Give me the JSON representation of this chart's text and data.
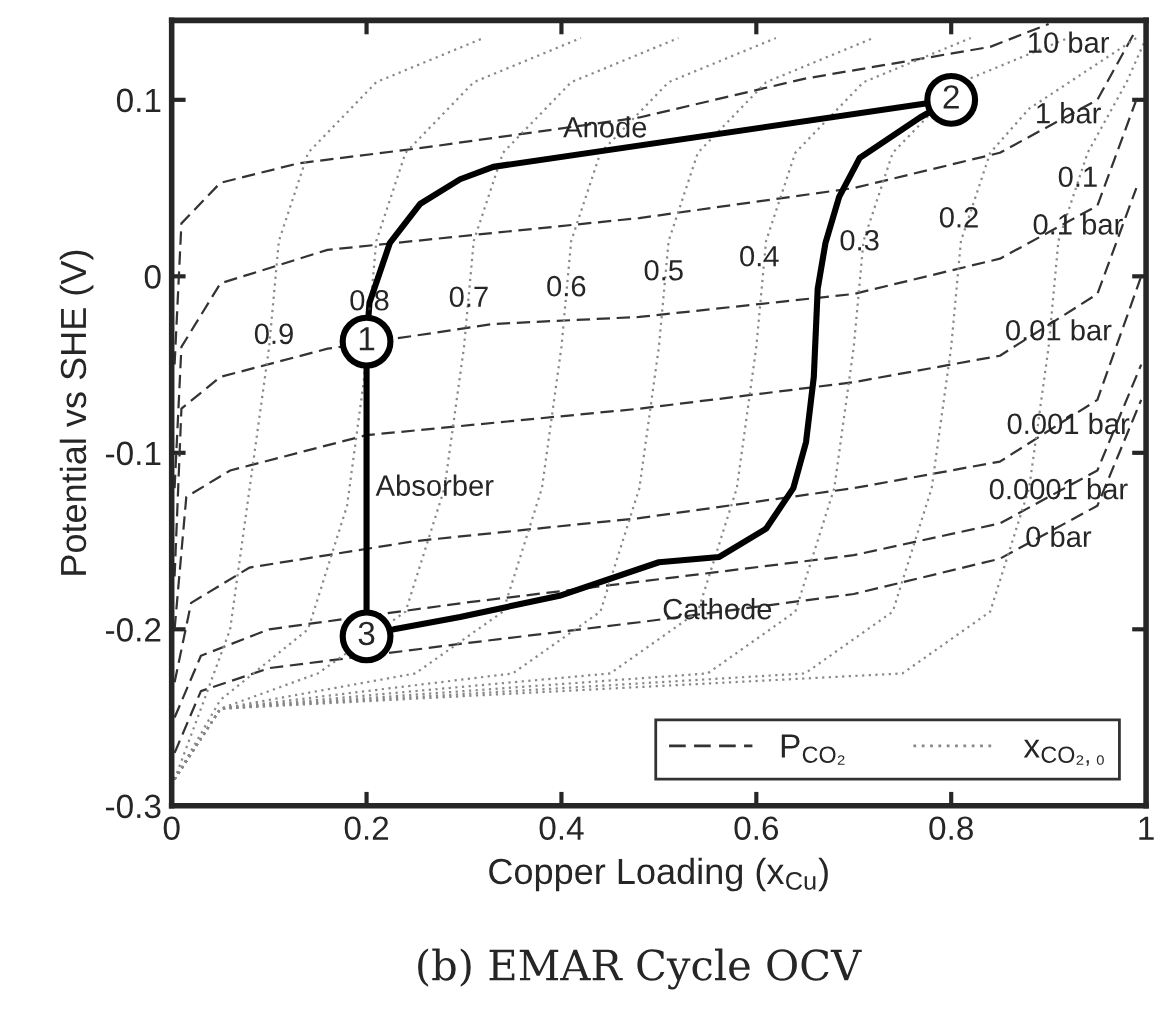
{
  "chart_data": {
    "type": "line",
    "xlabel": "Copper Loading (x$_{Cu}$)",
    "ylabel": "Potential vs SHE (V)",
    "xlim": [
      0,
      1
    ],
    "ylim": [
      -0.3,
      0.145
    ],
    "xticks": [
      0,
      0.2,
      0.4,
      0.6,
      0.8,
      1
    ],
    "yticks": [
      {
        "value": -0.3,
        "label": "-0.3"
      },
      {
        "value": -0.2,
        "label": "-0.2"
      },
      {
        "value": -0.1,
        "label": "-0.1"
      },
      0,
      0.1
    ],
    "grid": false,
    "legend": "bottom right",
    "series": [
      {
        "name": "P$_{CO₂}$",
        "color": "#333333",
        "line_style": "dashed",
        "x": [
          0.003,
          0.01,
          0.05,
          0.13,
          0.26,
          0.48,
          0.65,
          0.84,
          0.9
        ],
        "values": [
          -0.05,
          0.03,
          0.053,
          0.064,
          0.073,
          0.09,
          0.112,
          0.13,
          0.143
        ]
      },
      {
        "color": "#333333",
        "line_style": "dashed",
        "x": [
          0.003,
          0.01,
          0.05,
          0.16,
          0.48,
          0.7,
          0.85,
          0.95,
          0.99
        ],
        "values": [
          -0.12,
          -0.04,
          -0.004,
          0.015,
          0.033,
          0.05,
          0.07,
          0.1,
          0.14
        ]
      },
      {
        "color": "#333333",
        "line_style": "dashed",
        "x": [
          0.003,
          0.01,
          0.05,
          0.16,
          0.33,
          0.48,
          0.7,
          0.85,
          0.95,
          0.99
        ],
        "values": [
          -0.17,
          -0.075,
          -0.057,
          -0.041,
          -0.027,
          -0.023,
          -0.01,
          0.01,
          0.04,
          0.1
        ]
      },
      {
        "color": "#333333",
        "line_style": "dashed",
        "x": [
          0.003,
          0.015,
          0.06,
          0.2,
          0.48,
          0.7,
          0.85,
          0.95,
          0.99
        ],
        "values": [
          -0.2,
          -0.125,
          -0.11,
          -0.09,
          -0.075,
          -0.06,
          -0.045,
          -0.01,
          0.05
        ]
      },
      {
        "color": "#333333",
        "line_style": "dashed",
        "x": [
          0.003,
          0.02,
          0.08,
          0.25,
          0.48,
          0.7,
          0.85,
          0.95,
          0.995
        ],
        "values": [
          -0.23,
          -0.185,
          -0.165,
          -0.15,
          -0.137,
          -0.12,
          -0.105,
          -0.07,
          0.0
        ]
      },
      {
        "color": "#333333",
        "line_style": "dashed",
        "x": [
          0.003,
          0.03,
          0.1,
          0.3,
          0.48,
          0.7,
          0.85,
          0.95,
          0.995
        ],
        "values": [
          -0.25,
          -0.215,
          -0.2,
          -0.185,
          -0.173,
          -0.158,
          -0.14,
          -0.11,
          -0.05
        ]
      },
      {
        "color": "#333333",
        "line_style": "dashed",
        "x": [
          0.003,
          0.03,
          0.1,
          0.3,
          0.48,
          0.7,
          0.85,
          0.95,
          0.995
        ],
        "values": [
          -0.27,
          -0.235,
          -0.222,
          -0.208,
          -0.196,
          -0.18,
          -0.16,
          -0.13,
          -0.07
        ]
      },
      {
        "name": "x$_{CO₂,₀}$",
        "color": "#888888",
        "line_style": "dotted",
        "x": [
          0.003,
          0.03,
          0.06,
          0.08,
          0.1,
          0.11,
          0.14,
          0.21,
          0.32
        ],
        "values": [
          -0.285,
          -0.245,
          -0.2,
          -0.12,
          -0.04,
          0.02,
          0.07,
          0.11,
          0.135
        ]
      },
      {
        "color": "#888888",
        "line_style": "dotted",
        "x": [
          0.003,
          0.05,
          0.14,
          0.18,
          0.197,
          0.21,
          0.24,
          0.31,
          0.42
        ],
        "values": [
          -0.285,
          -0.24,
          -0.2,
          -0.13,
          -0.06,
          0.02,
          0.07,
          0.11,
          0.135
        ]
      },
      {
        "color": "#888888",
        "line_style": "dotted",
        "x": [
          0.003,
          0.05,
          0.15,
          0.24,
          0.28,
          0.3,
          0.31,
          0.34,
          0.41,
          0.52
        ],
        "values": [
          -0.285,
          -0.245,
          -0.225,
          -0.19,
          -0.12,
          -0.04,
          0.02,
          0.07,
          0.11,
          0.135
        ]
      },
      {
        "color": "#888888",
        "line_style": "dotted",
        "x": [
          0.003,
          0.05,
          0.25,
          0.34,
          0.38,
          0.4,
          0.41,
          0.44,
          0.51,
          0.62
        ],
        "values": [
          -0.285,
          -0.245,
          -0.225,
          -0.19,
          -0.12,
          -0.04,
          0.02,
          0.07,
          0.11,
          0.135
        ]
      },
      {
        "color": "#888888",
        "line_style": "dotted",
        "x": [
          0.003,
          0.05,
          0.35,
          0.44,
          0.48,
          0.5,
          0.51,
          0.54,
          0.61,
          0.72
        ],
        "values": [
          -0.285,
          -0.245,
          -0.225,
          -0.19,
          -0.12,
          -0.04,
          0.02,
          0.07,
          0.11,
          0.135
        ]
      },
      {
        "color": "#888888",
        "line_style": "dotted",
        "x": [
          0.003,
          0.05,
          0.45,
          0.54,
          0.58,
          0.6,
          0.61,
          0.64,
          0.71,
          0.82
        ],
        "values": [
          -0.285,
          -0.245,
          -0.225,
          -0.19,
          -0.12,
          -0.04,
          0.02,
          0.07,
          0.11,
          0.135
        ]
      },
      {
        "color": "#888888",
        "line_style": "dotted",
        "x": [
          0.003,
          0.05,
          0.55,
          0.64,
          0.68,
          0.7,
          0.71,
          0.74,
          0.81,
          0.92
        ],
        "values": [
          -0.285,
          -0.245,
          -0.225,
          -0.19,
          -0.12,
          -0.04,
          0.02,
          0.07,
          0.11,
          0.135
        ]
      },
      {
        "color": "#888888",
        "line_style": "dotted",
        "x": [
          0.003,
          0.05,
          0.65,
          0.74,
          0.78,
          0.8,
          0.81,
          0.84,
          0.88,
          0.99
        ],
        "values": [
          -0.285,
          -0.245,
          -0.225,
          -0.19,
          -0.12,
          -0.04,
          0.02,
          0.07,
          0.095,
          0.135
        ]
      },
      {
        "color": "#888888",
        "line_style": "dotted",
        "x": [
          0.003,
          0.05,
          0.75,
          0.84,
          0.88,
          0.9,
          0.91,
          0.94,
          0.98,
          1.0
        ],
        "values": [
          -0.285,
          -0.245,
          -0.225,
          -0.19,
          -0.12,
          -0.04,
          0.02,
          0.07,
          0.11,
          0.135
        ]
      },
      {
        "color": "#000000",
        "line_style": "solid",
        "x": [
          0.2,
          0.2,
          0.203,
          0.224,
          0.255,
          0.296,
          0.33,
          0.8,
          0.768,
          0.706,
          0.685,
          0.671,
          0.663,
          0.659,
          0.651,
          0.638,
          0.61,
          0.562,
          0.5,
          0.398,
          0.296,
          0.228
        ],
        "values": [
          -0.204,
          -0.037,
          -0.015,
          0.019,
          0.041,
          0.055,
          0.062,
          0.1,
          0.09,
          0.067,
          0.045,
          0.019,
          -0.007,
          -0.057,
          -0.094,
          -0.12,
          -0.143,
          -0.159,
          -0.162,
          -0.181,
          -0.193,
          -0.2
        ]
      }
    ],
    "annotations": [
      {
        "text": "10 bar",
        "x": 0.92,
        "y": 0.131
      },
      {
        "text": "1 bar",
        "x": 0.92,
        "y": 0.091
      },
      {
        "text": "0.1 bar",
        "x": 0.93,
        "y": 0.028
      },
      {
        "text": "0.01 bar",
        "x": 0.91,
        "y": -0.032
      },
      {
        "text": "0.001 bar",
        "x": 0.92,
        "y": -0.085
      },
      {
        "text": "0.0001 bar",
        "x": 0.91,
        "y": -0.122
      },
      {
        "text": "0 bar",
        "x": 0.91,
        "y": -0.149
      },
      {
        "text": "0.9",
        "x": 0.105,
        "y": -0.034
      },
      {
        "text": "0.8",
        "x": 0.203,
        "y": -0.015
      },
      {
        "text": "0.7",
        "x": 0.305,
        "y": -0.013
      },
      {
        "text": "0.6",
        "x": 0.405,
        "y": -0.007
      },
      {
        "text": "0.5",
        "x": 0.505,
        "y": 0.002
      },
      {
        "text": "0.4",
        "x": 0.603,
        "y": 0.01
      },
      {
        "text": "0.3",
        "x": 0.706,
        "y": 0.019
      },
      {
        "text": "0.2",
        "x": 0.808,
        "y": 0.032
      },
      {
        "text": "0.1",
        "x": 0.93,
        "y": 0.055
      },
      {
        "text": "Anode",
        "x": 0.445,
        "y": 0.083
      },
      {
        "text": "Absorber",
        "x": 0.27,
        "y": -0.12
      },
      {
        "text": "Cathode",
        "x": 0.56,
        "y": -0.19
      },
      {
        "text": "1",
        "x": 0.2,
        "y": -0.037
      },
      {
        "text": "2",
        "x": 0.8,
        "y": 0.1
      },
      {
        "text": "3",
        "x": 0.2,
        "y": -0.204
      },
      "(b) EMAR Cycle OCV"
    ]
  }
}
